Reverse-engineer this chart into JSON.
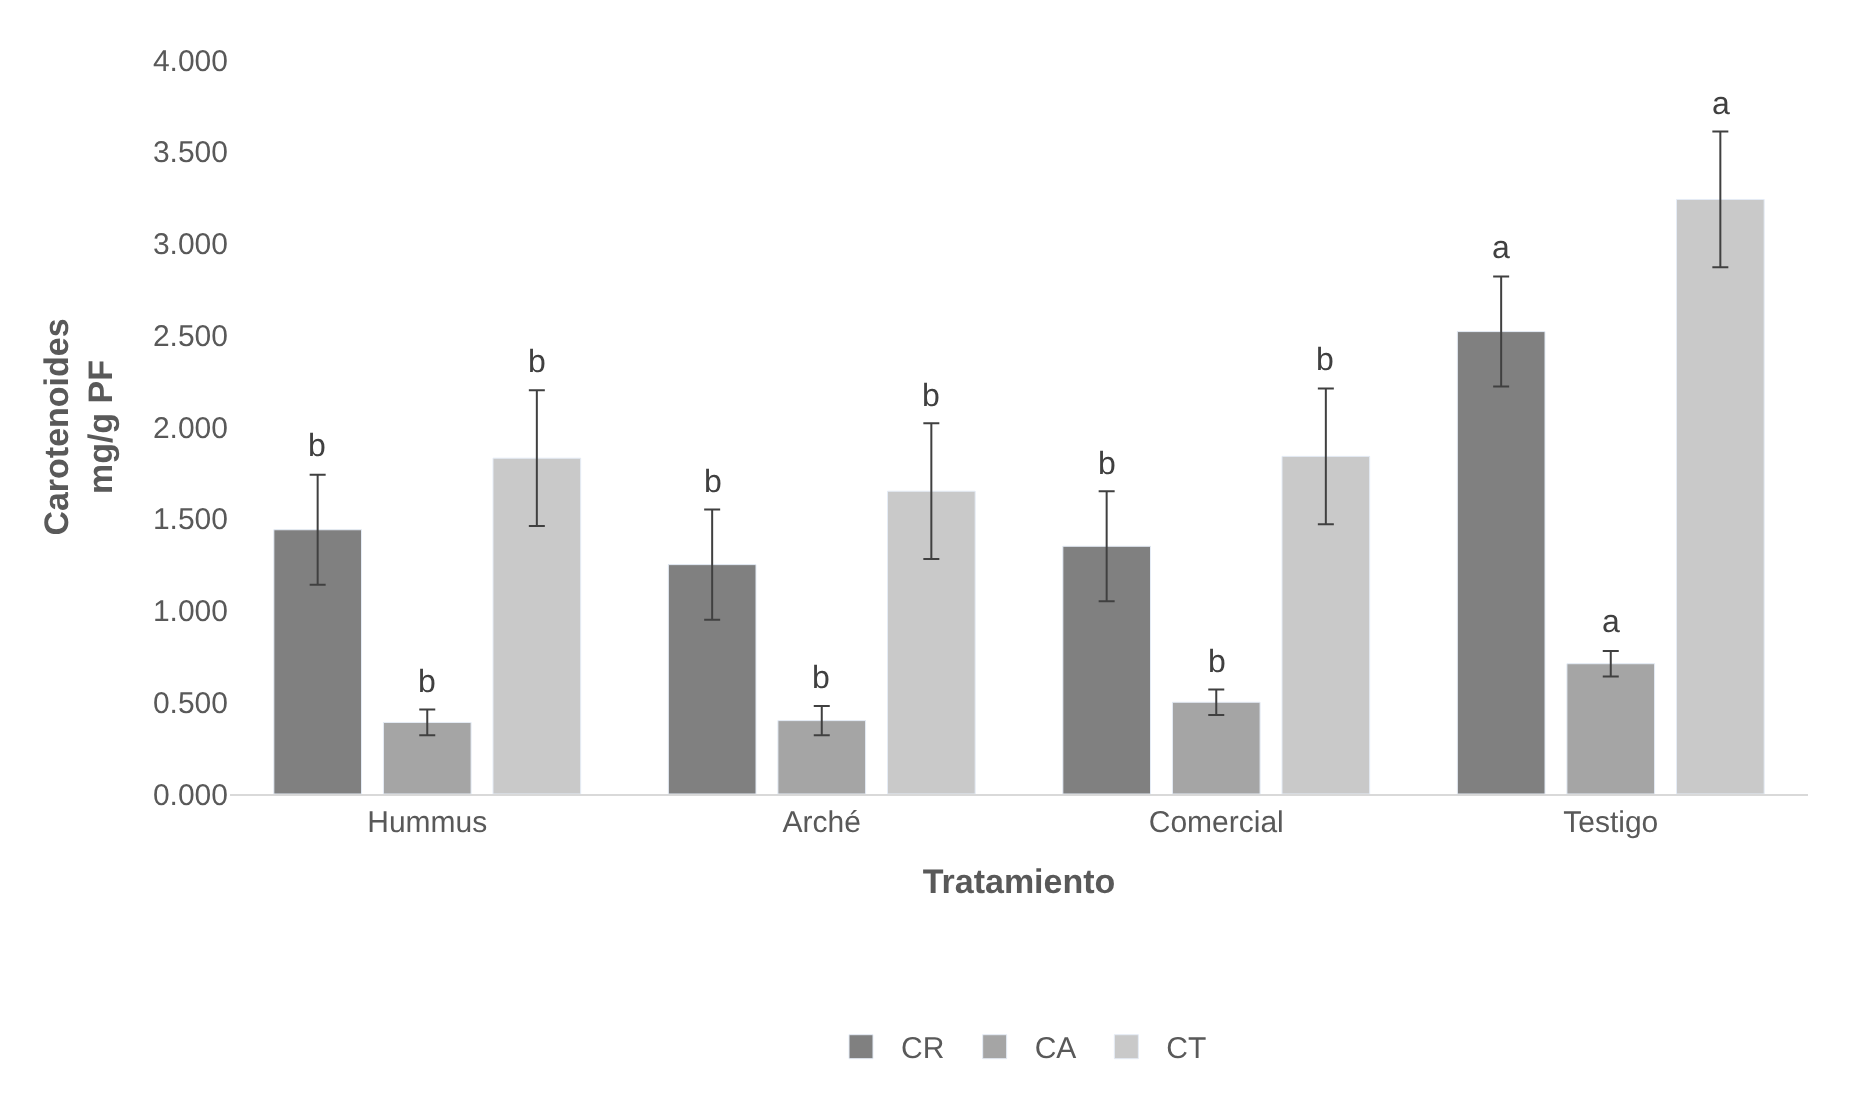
{
  "chart_data": {
    "type": "bar",
    "xlabel": "Tratamiento",
    "ylabel": "Carotenoides\nmg/g PF",
    "categories": [
      "Hummus",
      "Arché",
      "Comercial",
      "Testigo"
    ],
    "series": [
      {
        "name": "CR",
        "color": "#808080",
        "values": [
          1.44,
          1.25,
          1.35,
          2.52
        ],
        "errors": [
          0.3,
          0.3,
          0.3,
          0.3
        ],
        "value_labels": [
          "b",
          "b",
          "b",
          "a"
        ]
      },
      {
        "name": "CA",
        "color": "#a5a5a5",
        "values": [
          0.39,
          0.4,
          0.5,
          0.71
        ],
        "errors": [
          0.07,
          0.08,
          0.07,
          0.07
        ],
        "value_labels": [
          "b",
          "b",
          "b",
          "a"
        ]
      },
      {
        "name": "CT",
        "color": "#c9c9c9",
        "values": [
          1.83,
          1.65,
          1.84,
          3.24
        ],
        "errors": [
          0.37,
          0.37,
          0.37,
          0.37
        ],
        "value_labels": [
          "b",
          "b",
          "b",
          "a"
        ]
      }
    ],
    "ylim": [
      0,
      4
    ],
    "yticks": [
      {
        "value": 0,
        "label": "0.000"
      },
      {
        "value": 0.5,
        "label": "0.500"
      },
      {
        "value": 1,
        "label": "1.000"
      },
      {
        "value": 1.5,
        "label": "1.500"
      },
      {
        "value": 2,
        "label": "2.000"
      },
      {
        "value": 2.5,
        "label": "2.500"
      },
      {
        "value": 3,
        "label": "3.000"
      },
      {
        "value": 3.5,
        "label": "3.500"
      },
      {
        "value": 4,
        "label": "4.000"
      }
    ],
    "grid": false,
    "legend": "bottom"
  }
}
